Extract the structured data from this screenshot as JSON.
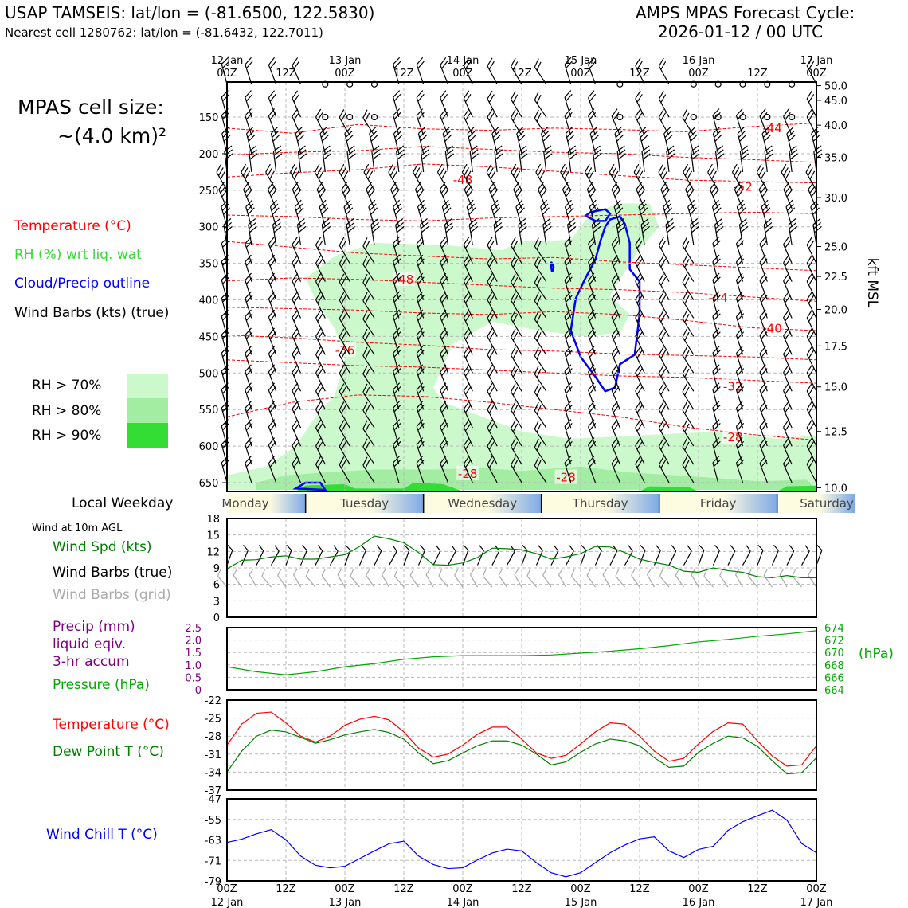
{
  "header": {
    "station_line": "USAP TAMSEIS: lat/lon = (-81.6500, 122.5830)",
    "cell_line": "Nearest cell 1280762: lat/lon = (-81.6432, 122.7011)",
    "forecast_label": "AMPS MPAS Forecast Cycle:",
    "forecast_cycle": "2026-01-12 / 00 UTC"
  },
  "side_panel": {
    "cell_size_title": "MPAS cell size:",
    "cell_size_value": "~(4.0 km)²",
    "legend": {
      "temperature": "Temperature (°C)",
      "rh": "RH (%) wrt liq. wat",
      "cloud": "Cloud/Precip outline",
      "wind": "Wind Barbs (kts) (true)"
    },
    "rh_levels": [
      "RH > 70%",
      "RH > 80%",
      "RH > 90%"
    ],
    "weekday_label": "Local Weekday",
    "wind10_title": "Wind at 10m AGL",
    "wind_speed_label": "Wind Spd (kts)",
    "wind_barbs_true": "Wind Barbs (true)",
    "wind_barbs_grid": "Wind Barbs (grid)",
    "precip_label_1": "Precip (mm)",
    "precip_label_2": "liquid eqiv.",
    "precip_label_3": "3-hr accum",
    "pressure_label": "Pressure (hPa)",
    "temp_label": "Temperature (°C)",
    "dewpoint_label": "Dew Point T (°C)",
    "windchill_label": "Wind Chill T (°C)"
  },
  "colors": {
    "temperature": "#ff0000",
    "rh_text": "#33dd33",
    "cloud": "#0000ff",
    "wind_speed": "#008000",
    "wind_grid": "#aaaaaa",
    "precip": "#800080",
    "pressure": "#00aa00",
    "rh70": "#ccf9cc",
    "rh80": "#a2eda2",
    "rh90": "#33dd33"
  },
  "chart_data": [
    {
      "type": "time-height",
      "name": "upper-air cross section",
      "x_ticks_top": [
        "12 Jan\n00Z",
        "12Z",
        "13 Jan\n00Z",
        "12Z",
        "14 Jan\n00Z",
        "12Z",
        "15 Jan\n00Z",
        "12Z",
        "16 Jan\n00Z",
        "12Z",
        "17 Jan\n00Z"
      ],
      "hours_range": [
        0,
        120
      ],
      "pressure_ticks": [
        150,
        200,
        250,
        300,
        350,
        400,
        450,
        500,
        550,
        600,
        650
      ],
      "ylim_hPa": [
        662,
        102
      ],
      "right_axis_label": "kft MSL",
      "kft_ticks": [
        {
          "label": "50.0",
          "p": 107
        },
        {
          "label": "45.0",
          "p": 127
        },
        {
          "label": "40.0",
          "p": 161
        },
        {
          "label": "35.0",
          "p": 205
        },
        {
          "label": "30.0",
          "p": 260
        },
        {
          "label": "25.0",
          "p": 327
        },
        {
          "label": "22.5",
          "p": 368
        },
        {
          "label": "20.0",
          "p": 413
        },
        {
          "label": "17.5",
          "p": 463
        },
        {
          "label": "15.0",
          "p": 519
        },
        {
          "label": "12.5",
          "p": 580
        },
        {
          "label": "10.0",
          "p": 657
        }
      ],
      "isotherm_labels": [
        {
          "text": "-44",
          "hr": 111,
          "p": 165
        },
        {
          "text": "-48",
          "hr": 48,
          "p": 236
        },
        {
          "text": "-52",
          "hr": 105,
          "p": 245
        },
        {
          "text": "-48",
          "hr": 36,
          "p": 372
        },
        {
          "text": "-44",
          "hr": 100,
          "p": 397
        },
        {
          "text": "-40",
          "hr": 111,
          "p": 439
        },
        {
          "text": "-36",
          "hr": 24,
          "p": 469
        },
        {
          "text": "-32",
          "hr": 103,
          "p": 519
        },
        {
          "text": "-28",
          "hr": 103,
          "p": 588
        },
        {
          "text": "-28",
          "hr": 49,
          "p": 638
        },
        {
          "text": "-28",
          "hr": 69,
          "p": 643
        }
      ]
    },
    {
      "type": "line",
      "name": "wind at 10m",
      "x_hours": [
        0,
        3,
        6,
        9,
        12,
        15,
        18,
        21,
        24,
        27,
        30,
        33,
        36,
        39,
        42,
        45,
        48,
        51,
        54,
        57,
        60,
        63,
        66,
        69,
        72,
        75,
        78,
        81,
        84,
        87,
        90,
        93,
        96,
        99,
        102,
        105,
        108,
        111,
        114,
        117,
        120
      ],
      "series": [
        {
          "name": "Wind Spd (kts)",
          "values": [
            8.8,
            10.4,
            10.5,
            11.0,
            11.2,
            10.6,
            10.6,
            11.0,
            11.4,
            12.9,
            14.8,
            14.3,
            13.6,
            11.8,
            9.6,
            9.5,
            9.9,
            10.9,
            12.6,
            12.5,
            12.3,
            11.6,
            10.6,
            11.0,
            11.6,
            12.9,
            12.8,
            11.8,
            10.6,
            10.0,
            9.5,
            8.4,
            8.2,
            9.0,
            8.5,
            8.2,
            7.4,
            7.2,
            7.6,
            7.2,
            7.2
          ]
        }
      ],
      "ylim": [
        0,
        18
      ],
      "y_ticks": [
        0,
        3,
        6,
        9,
        12,
        15,
        18
      ]
    },
    {
      "type": "line",
      "name": "precip and pressure",
      "x_hours": [
        0,
        6,
        12,
        18,
        24,
        30,
        36,
        42,
        48,
        54,
        60,
        66,
        72,
        78,
        84,
        90,
        96,
        102,
        108,
        114,
        120
      ],
      "series": [
        {
          "name": "Pressure (hPa)",
          "values": [
            667.7,
            666.9,
            666.4,
            666.9,
            667.7,
            668.2,
            668.9,
            669.3,
            669.5,
            669.5,
            669.5,
            669.6,
            669.9,
            670.2,
            670.6,
            671.1,
            671.7,
            672.1,
            672.6,
            673.0,
            673.5
          ]
        }
      ],
      "precip_ylim": [
        0,
        2.5
      ],
      "precip_ticks": [
        "0",
        "0.5",
        "1.0",
        "1.5",
        "2.0",
        "2.5"
      ],
      "pressure_ylim": [
        664,
        674
      ],
      "pressure_ticks": [
        "664",
        "666",
        "668",
        "670",
        "672",
        "674"
      ],
      "pressure_unit": "(hPa)"
    },
    {
      "type": "line",
      "name": "temperature and dew point",
      "x_hours": [
        0,
        3,
        6,
        9,
        12,
        15,
        18,
        21,
        24,
        27,
        30,
        33,
        36,
        39,
        42,
        45,
        48,
        51,
        54,
        57,
        60,
        63,
        66,
        69,
        72,
        75,
        78,
        81,
        84,
        87,
        90,
        93,
        96,
        99,
        102,
        105,
        108,
        111,
        114,
        117,
        120
      ],
      "series": [
        {
          "name": "Temperature (°C)",
          "values": [
            -29.5,
            -26.0,
            -24.2,
            -24.0,
            -25.8,
            -28.0,
            -29.0,
            -28.0,
            -26.2,
            -25.2,
            -24.7,
            -25.3,
            -27.3,
            -30.0,
            -31.5,
            -31.0,
            -29.5,
            -27.7,
            -26.5,
            -26.5,
            -28.5,
            -30.8,
            -31.7,
            -31.2,
            -29.3,
            -27.3,
            -25.8,
            -26.0,
            -28.0,
            -30.5,
            -32.2,
            -31.7,
            -29.3,
            -27.2,
            -25.8,
            -26.0,
            -28.8,
            -31.3,
            -33.0,
            -32.8,
            -29.6
          ],
          "color": "#ff0000"
        },
        {
          "name": "Dew Point T (°C)",
          "values": [
            -34.0,
            -30.5,
            -28.0,
            -27.0,
            -27.3,
            -28.2,
            -29.2,
            -28.6,
            -27.8,
            -27.3,
            -26.9,
            -27.4,
            -28.5,
            -30.8,
            -32.6,
            -32.1,
            -30.8,
            -29.6,
            -28.8,
            -28.8,
            -29.5,
            -31.0,
            -32.8,
            -32.3,
            -30.7,
            -29.3,
            -28.5,
            -28.8,
            -29.6,
            -31.6,
            -33.2,
            -33.0,
            -30.7,
            -29.2,
            -28.0,
            -28.3,
            -29.7,
            -32.1,
            -34.3,
            -34.1,
            -31.6
          ],
          "color": "#008000"
        }
      ],
      "ylim": [
        -37,
        -22
      ],
      "y_ticks": [
        "-37",
        "-34",
        "-31",
        "-28",
        "-25",
        "-22"
      ]
    },
    {
      "type": "line",
      "name": "wind chill",
      "x_hours": [
        0,
        3,
        6,
        9,
        12,
        15,
        18,
        21,
        24,
        27,
        30,
        33,
        36,
        39,
        42,
        45,
        48,
        51,
        54,
        57,
        60,
        63,
        66,
        69,
        72,
        75,
        78,
        81,
        84,
        87,
        90,
        93,
        96,
        99,
        102,
        105,
        108,
        111,
        114,
        117,
        120
      ],
      "series": [
        {
          "name": "Wind Chill T (°C)",
          "values": [
            -64.0,
            -62.7,
            -60.6,
            -59.0,
            -63.0,
            -69.3,
            -72.9,
            -73.9,
            -73.3,
            -70.3,
            -67.3,
            -64.5,
            -63.5,
            -69.3,
            -72.6,
            -74.2,
            -73.9,
            -70.8,
            -68.1,
            -66.6,
            -67.3,
            -71.9,
            -75.8,
            -77.4,
            -75.8,
            -71.9,
            -68.0,
            -65.0,
            -62.6,
            -61.8,
            -67.3,
            -69.9,
            -66.7,
            -65.5,
            -59.3,
            -55.9,
            -53.6,
            -51.4,
            -55.3,
            -64.4,
            -68.0
          ]
        }
      ],
      "ylim": [
        -79,
        -47
      ],
      "y_ticks": [
        "-79",
        "-71",
        "-63",
        "-55",
        "-47"
      ],
      "x_ticks_bottom": [
        "00Z\n12 Jan",
        "12Z",
        "00Z\n13 Jan",
        "12Z",
        "00Z\n14 Jan",
        "12Z",
        "00Z\n15 Jan",
        "12Z",
        "00Z\n16 Jan",
        "12Z",
        "00Z\n17 Jan"
      ]
    }
  ],
  "weekdays": [
    {
      "name": "Monday",
      "start_hr": -8,
      "end_hr": 16
    },
    {
      "name": "Tuesday",
      "start_hr": 16,
      "end_hr": 40
    },
    {
      "name": "Wednesday",
      "start_hr": 40,
      "end_hr": 64
    },
    {
      "name": "Thursday",
      "start_hr": 64,
      "end_hr": 88
    },
    {
      "name": "Friday",
      "start_hr": 88,
      "end_hr": 112
    },
    {
      "name": "Saturday",
      "start_hr": 112,
      "end_hr": 128
    }
  ]
}
